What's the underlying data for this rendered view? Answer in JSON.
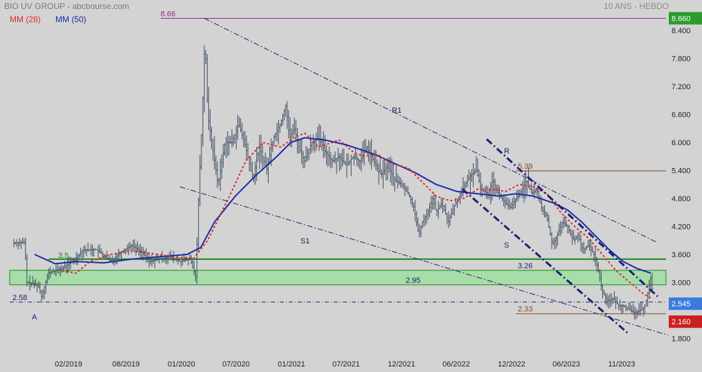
{
  "header": {
    "title": "BIO UV GROUP - abcbourse.com",
    "period": "10 ANS - HEBDO",
    "ma28_label": "MM (28)",
    "ma50_label": "MM (50)"
  },
  "colors": {
    "background": "#d3d3d3",
    "price": "#3b4a5e",
    "ma28": "#e0262b",
    "ma50": "#1a2ca8",
    "support": "#1a8a1a",
    "zone_fill": "#a8dca8",
    "top_line": "#8a2b8a",
    "level_line": "#8a4a20",
    "trend": "#1a2070",
    "high_badge": "#2c9a2c",
    "low_badge": "#cc1f1f",
    "last_badge": "#3b7be0"
  },
  "chart_data": {
    "type": "ohlc",
    "ylim": [
      1.6,
      8.8
    ],
    "yticks": [
      "8.400",
      "7.800",
      "7.200",
      "6.600",
      "6.000",
      "5.400",
      "4.800",
      "4.200",
      "3.600",
      "3.000",
      "1.800"
    ],
    "xticks": [
      "02/2019",
      "08/2019",
      "01/2020",
      "07/2020",
      "01/2021",
      "07/2021",
      "12/2021",
      "06/2022",
      "12/2022",
      "06/2023",
      "11/2023"
    ],
    "series": [
      {
        "name": "MM (28)",
        "style": "dotted"
      },
      {
        "name": "MM (50)",
        "style": "solid"
      }
    ],
    "badges": {
      "high": "8.660",
      "last": "2.545",
      "low": "2.160"
    },
    "levels": [
      {
        "label": "8.66",
        "value": 8.66
      },
      {
        "label": "5.39",
        "value": 5.39
      },
      {
        "label": "3.5",
        "value": 3.5
      },
      {
        "label": "3.26",
        "value": 3.26
      },
      {
        "label": "2.95",
        "value": 2.95
      },
      {
        "label": "2.58",
        "value": 2.58
      },
      {
        "label": "2.33",
        "value": 2.33
      }
    ],
    "trendlines": [
      {
        "label": "R1"
      },
      {
        "label": "S1"
      },
      {
        "label": "R"
      },
      {
        "label": "S"
      }
    ],
    "markers": [
      "A"
    ]
  }
}
